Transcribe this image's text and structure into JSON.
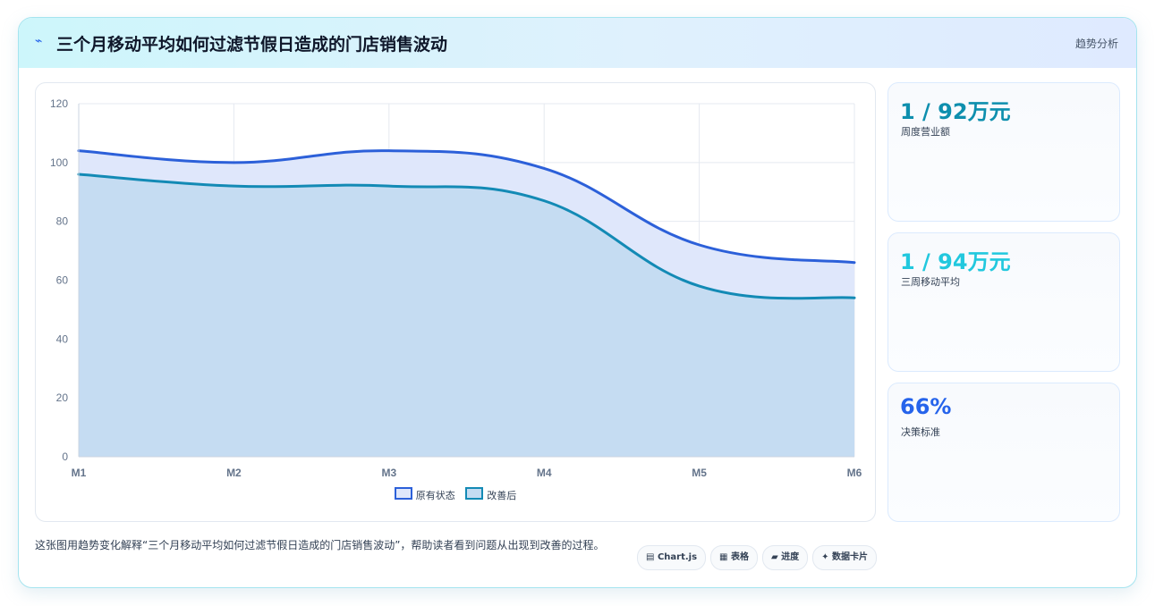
{
  "header": {
    "icon": "lightning-icon",
    "title": "三个月移动平均如何过滤节假日造成的门店销售波动",
    "tag": "趋势分析"
  },
  "chart_data": {
    "type": "area",
    "categories": [
      "M1",
      "M2",
      "M3",
      "M4",
      "M5",
      "M6"
    ],
    "series": [
      {
        "name": "原有状态",
        "values": [
          104,
          100,
          104,
          98,
          72,
          66
        ],
        "color": "#2c60d9",
        "fill": "#dfe7fb"
      },
      {
        "name": "改善后",
        "values": [
          96,
          92,
          92,
          87,
          58,
          54
        ],
        "color": "#138ab5",
        "fill": "#c5dcf2"
      }
    ],
    "ylim": [
      0,
      120
    ],
    "yticks": [
      0,
      20,
      40,
      60,
      80,
      100,
      120
    ],
    "grid": true,
    "legend": "bottom"
  },
  "stats": [
    {
      "value": "1 / 92万元",
      "label": "周度营业额",
      "color": "#0e8fae"
    },
    {
      "value": "1 / 94万元",
      "label": "三周移动平均",
      "color": "#22c8de"
    },
    {
      "value": "66%",
      "label": "决策标准",
      "color": "#2563eb"
    }
  ],
  "description": "这张图用趋势变化解释“三个月移动平均如何过滤节假日造成的门店销售波动”，帮助读者看到问题从出现到改善的过程。",
  "chips": [
    {
      "icon": "▤",
      "label": "Chart.js"
    },
    {
      "icon": "▦",
      "label": "表格"
    },
    {
      "icon": "▰",
      "label": "进度"
    },
    {
      "icon": "✦",
      "label": "数据卡片"
    }
  ]
}
